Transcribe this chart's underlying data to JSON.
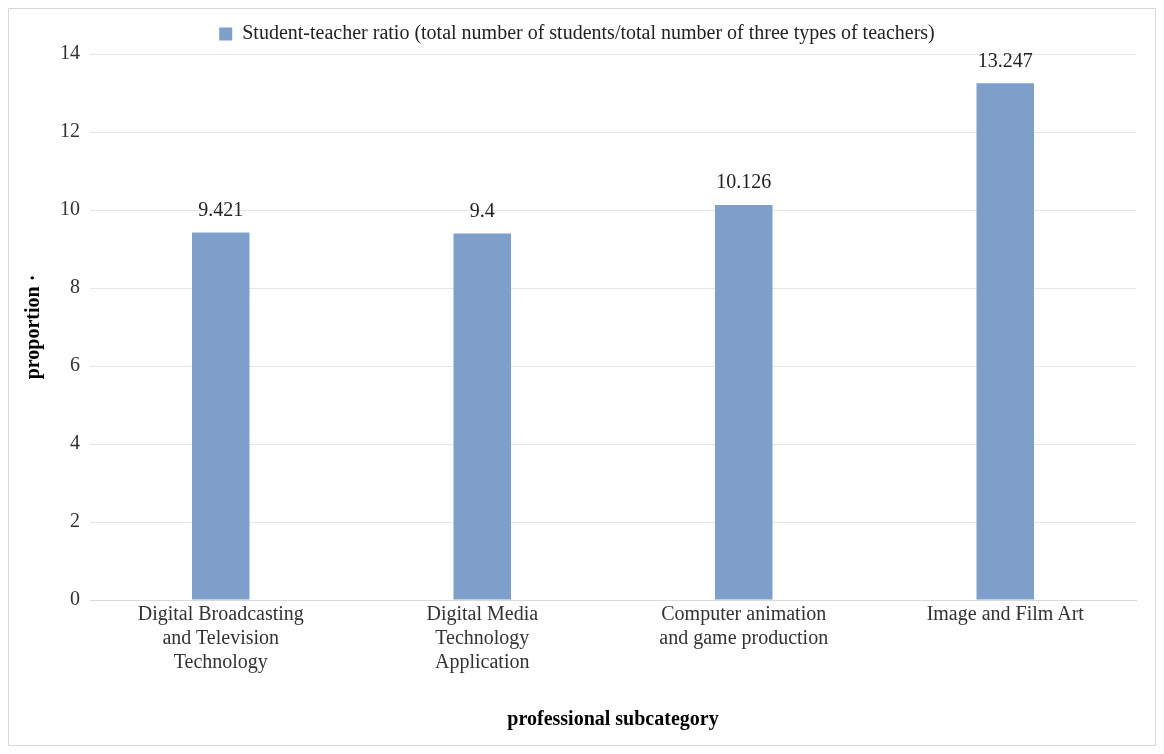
{
  "chart_data": {
    "type": "bar",
    "xlabel": "professional subcategory",
    "ylabel": "proportion ·",
    "categories": [
      "Digital Broadcasting and Television Technology",
      "Digital Media Technology Application",
      "Computer animation and game production",
      "Image and Film Art"
    ],
    "series": [
      {
        "name": "Student-teacher ratio (total number of students/total number of three types of teachers)",
        "color": "#7f9fcb",
        "values": [
          9.421,
          9.4,
          10.126,
          13.247
        ]
      }
    ],
    "ylim": [
      0,
      14
    ],
    "yticks": [
      0,
      2,
      4,
      6,
      8,
      10,
      12,
      14
    ],
    "grid": "y",
    "legend": "top",
    "data_labels": true
  }
}
